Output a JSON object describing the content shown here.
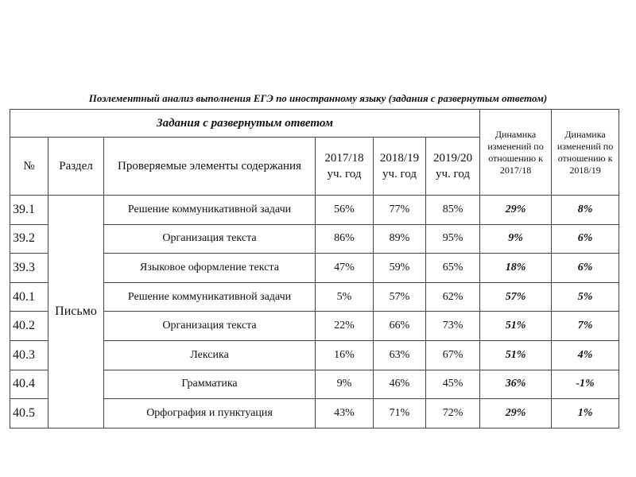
{
  "title": "Поэлементный анализ выполнения ЕГЭ по иностранному языку (задания с развернутым ответом)",
  "table": {
    "group_header": "Задания с развернутым ответом",
    "columns": [
      "№",
      "Раздел",
      "Проверяемые элементы содержания",
      "2017/18 уч. год",
      "2018/19 уч. год",
      "2019/20 уч. год",
      "Динамика изменений по отношению к 2017/18",
      "Динамика изменений по отношению к 2018/19"
    ],
    "section": "Письмо",
    "rows": [
      [
        "39.1",
        "Решение коммуникативной задачи",
        "56%",
        "77%",
        "85%",
        "29%",
        "8%"
      ],
      [
        "39.2",
        "Организация текста",
        "86%",
        "89%",
        "95%",
        "9%",
        "6%"
      ],
      [
        "39.3",
        "Языковое оформление текста",
        "47%",
        "59%",
        "65%",
        "18%",
        "6%"
      ],
      [
        "40.1",
        "Решение коммуникативной задачи",
        "5%",
        "57%",
        "62%",
        "57%",
        "5%"
      ],
      [
        "40.2",
        "Организация текста",
        "22%",
        "66%",
        "73%",
        "51%",
        "7%"
      ],
      [
        "40.3",
        "Лексика",
        "16%",
        "63%",
        "67%",
        "51%",
        "4%"
      ],
      [
        "40.4",
        "Грамматика",
        "9%",
        "46%",
        "45%",
        "36%",
        "-1%"
      ],
      [
        "40.5",
        "Орфография и пунктуация",
        "43%",
        "71%",
        "72%",
        "29%",
        "1%"
      ]
    ]
  }
}
